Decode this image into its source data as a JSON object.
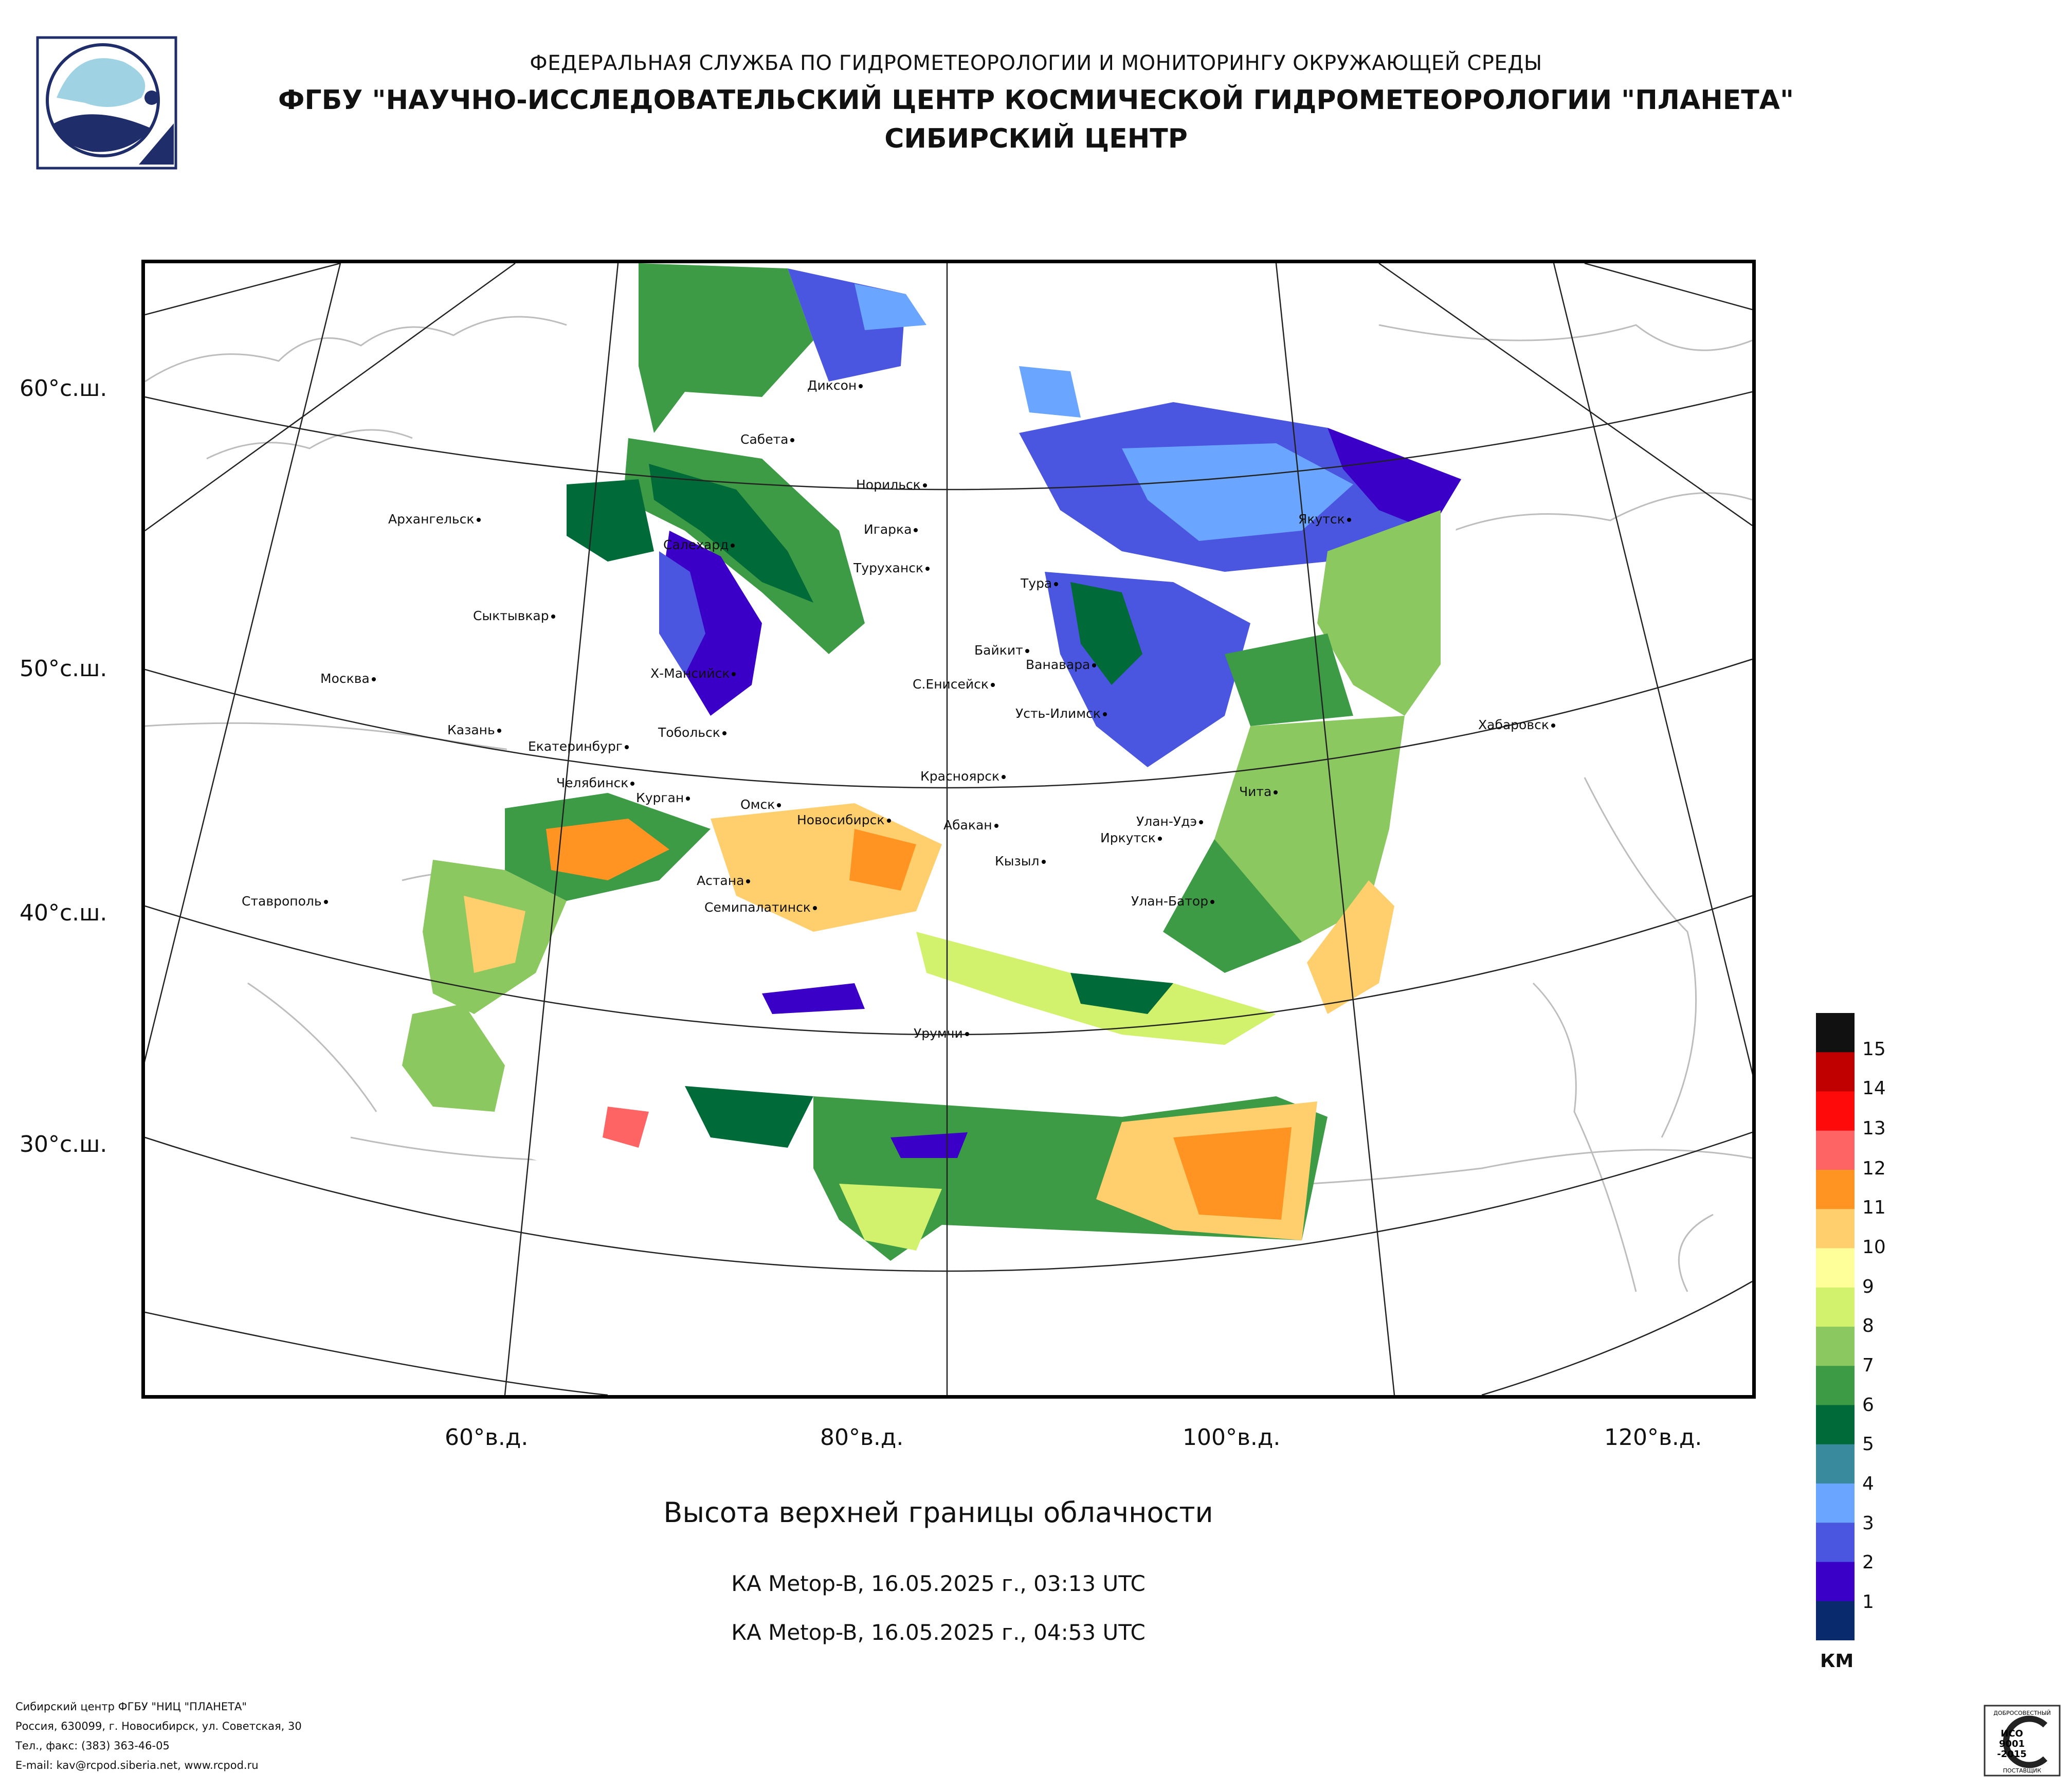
{
  "header": {
    "line1": "ФЕДЕРАЛЬНАЯ СЛУЖБА ПО ГИДРОМЕТЕОРОЛОГИИ И МОНИТОРИНГУ ОКРУЖАЮЩЕЙ СРЕДЫ",
    "line2": "ФГБУ \"НАУЧНО-ИССЛЕДОВАТЕЛЬСКИЙ ЦЕНТР КОСМИЧЕСКОЙ ГИДРОМЕТЕОРОЛОГИИ \"ПЛАНЕТА\"",
    "line3": "СИБИРСКИЙ ЦЕНТР"
  },
  "map": {
    "lat_labels": [
      "60°с.ш.",
      "50°с.ш.",
      "40°с.ш.",
      "30°с.ш."
    ],
    "lon_labels": [
      "60°в.д.",
      "80°в.д.",
      "100°в.д.",
      "120°в.д."
    ],
    "cities": [
      "Диксон",
      "Сабета",
      "Норильск",
      "Игарка",
      "Туруханск",
      "Салехард",
      "Архангельск",
      "Якутск",
      "Тура",
      "Сыктывкар",
      "Байкит",
      "Ванавара",
      "Х-Мансийск",
      "С.Енисейск",
      "Москва",
      "Усть-Илимск",
      "Хабаровск",
      "Казань",
      "Тобольск",
      "Екатеринбург",
      "Красноярск",
      "Челябинск",
      "Курган",
      "Омск",
      "Чита",
      "Новосибирск",
      "Абакан",
      "Улан-Удэ",
      "Иркутск",
      "Кызыл",
      "Астана",
      "Улан-Батор",
      "Ставрополь",
      "Семипалатинск",
      "Урумчи"
    ],
    "cloud_palette": [
      "#0a2a6e",
      "#3b00c8",
      "#4a55e0",
      "#6aa6ff",
      "#3a8a9e",
      "#006a38",
      "#3d9a45",
      "#8cc860",
      "#d2f26e",
      "#ffff9a",
      "#ffcf6e",
      "#ff9422",
      "#ff6464",
      "#ff0a0a",
      "#c00000",
      "#111111"
    ]
  },
  "title": "Высота верхней границы облачности",
  "passes": [
    "КА Metop-B, 16.05.2025 г., 03:13 UTC",
    "КА Metop-B, 16.05.2025 г., 04:53 UTC"
  ],
  "legend": {
    "labels": [
      "15",
      "14",
      "13",
      "12",
      "11",
      "10",
      "9",
      "8",
      "7",
      "6",
      "5",
      "4",
      "3",
      "2",
      "1"
    ],
    "units": "КМ"
  },
  "footer": {
    "line1": "Сибирский центр ФГБУ \"НИЦ \"ПЛАНЕТА\"",
    "line2": "Россия, 630099, г. Новосибирск, ул. Советская, 30",
    "line3": "Тел., факс: (383) 363-46-05",
    "line4": "E-mail: kav@rcpod.siberia.net, www.rcpod.ru"
  },
  "cert": {
    "top": "ДОБРОСОВЕСТНЫЙ",
    "mid1": "ИСО",
    "mid2": "9001",
    "mid3": "-2015",
    "bottom": "ПОСТАВЩИК"
  }
}
